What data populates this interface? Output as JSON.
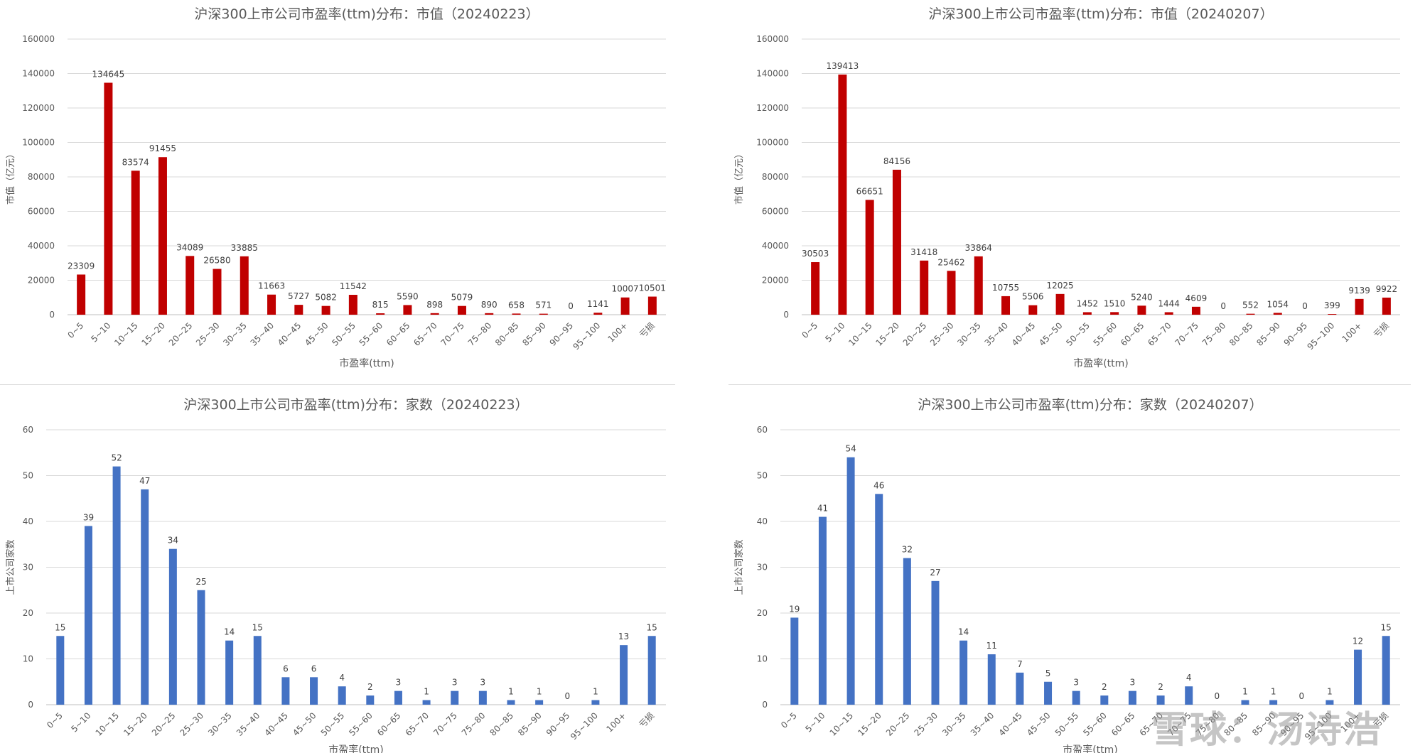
{
  "watermark": "雪球：汤诗浩",
  "chart_data": [
    {
      "type": "bar",
      "title": "沪深300上市公司市盈率(ttm)分布：市值（20240223）",
      "xlabel": "市盈率(ttm)",
      "ylabel": "市值（亿元）",
      "ylim": [
        0,
        160000
      ],
      "yticks": [
        0,
        20000,
        40000,
        60000,
        80000,
        100000,
        120000,
        140000,
        160000
      ],
      "color": "#c00000",
      "categories": [
        "0~5",
        "5~10",
        "10~15",
        "15~20",
        "20~25",
        "25~30",
        "30~35",
        "35~40",
        "40~45",
        "45~50",
        "50~55",
        "55~60",
        "60~65",
        "65~70",
        "70~75",
        "75~80",
        "80~85",
        "85~90",
        "90~95",
        "95~100",
        "100+",
        "亏损"
      ],
      "values": [
        23309,
        134645,
        83574,
        91455,
        34089,
        26580,
        33885,
        11663,
        5727,
        5082,
        11542,
        815,
        5590,
        898,
        5079,
        890,
        658,
        571,
        0,
        1141,
        10007,
        10501
      ],
      "grid": true
    },
    {
      "type": "bar",
      "title": "沪深300上市公司市盈率(ttm)分布：市值（20240207）",
      "xlabel": "市盈率(ttm)",
      "ylabel": "市值（亿元）",
      "ylim": [
        0,
        160000
      ],
      "yticks": [
        0,
        20000,
        40000,
        60000,
        80000,
        100000,
        120000,
        140000,
        160000
      ],
      "color": "#c00000",
      "categories": [
        "0~5",
        "5~10",
        "10~15",
        "15~20",
        "20~25",
        "25~30",
        "30~35",
        "35~40",
        "40~45",
        "45~50",
        "50~55",
        "55~60",
        "60~65",
        "65~70",
        "70~75",
        "75~80",
        "80~85",
        "85~90",
        "90~95",
        "95~100",
        "100+",
        "亏损"
      ],
      "values": [
        30503,
        139413,
        66651,
        84156,
        31418,
        25462,
        33864,
        10755,
        5506,
        12025,
        1452,
        1510,
        5240,
        1444,
        4609,
        0,
        552,
        1054,
        0,
        399,
        9139,
        9922
      ],
      "grid": true
    },
    {
      "type": "bar",
      "title": "沪深300上市公司市盈率(ttm)分布：家数（20240223）",
      "xlabel": "市盈率(ttm)",
      "ylabel": "上市公司家数",
      "ylim": [
        0,
        60
      ],
      "yticks": [
        0,
        10,
        20,
        30,
        40,
        50,
        60
      ],
      "color": "#4472c4",
      "categories": [
        "0~5",
        "5~10",
        "10~15",
        "15~20",
        "20~25",
        "25~30",
        "30~35",
        "35~40",
        "40~45",
        "45~50",
        "50~55",
        "55~60",
        "60~65",
        "65~70",
        "70~75",
        "75~80",
        "80~85",
        "85~90",
        "90~95",
        "95~100",
        "100+",
        "亏损"
      ],
      "values": [
        15,
        39,
        52,
        47,
        34,
        25,
        14,
        15,
        6,
        6,
        4,
        2,
        3,
        1,
        3,
        3,
        1,
        1,
        0,
        1,
        13,
        15
      ],
      "grid": true
    },
    {
      "type": "bar",
      "title": "沪深300上市公司市盈率(ttm)分布：家数（20240207）",
      "xlabel": "市盈率(ttm)",
      "ylabel": "上市公司家数",
      "ylim": [
        0,
        60
      ],
      "yticks": [
        0,
        10,
        20,
        30,
        40,
        50,
        60
      ],
      "color": "#4472c4",
      "categories": [
        "0~5",
        "5~10",
        "10~15",
        "15~20",
        "20~25",
        "25~30",
        "30~35",
        "35~40",
        "40~45",
        "45~50",
        "50~55",
        "55~60",
        "60~65",
        "65~70",
        "70~75",
        "75~80",
        "80~85",
        "85~90",
        "90~95",
        "95~100",
        "100+",
        "亏损"
      ],
      "values": [
        19,
        41,
        54,
        46,
        32,
        27,
        14,
        11,
        7,
        5,
        3,
        2,
        3,
        2,
        4,
        0,
        1,
        1,
        0,
        1,
        12,
        15
      ],
      "grid": true
    }
  ]
}
